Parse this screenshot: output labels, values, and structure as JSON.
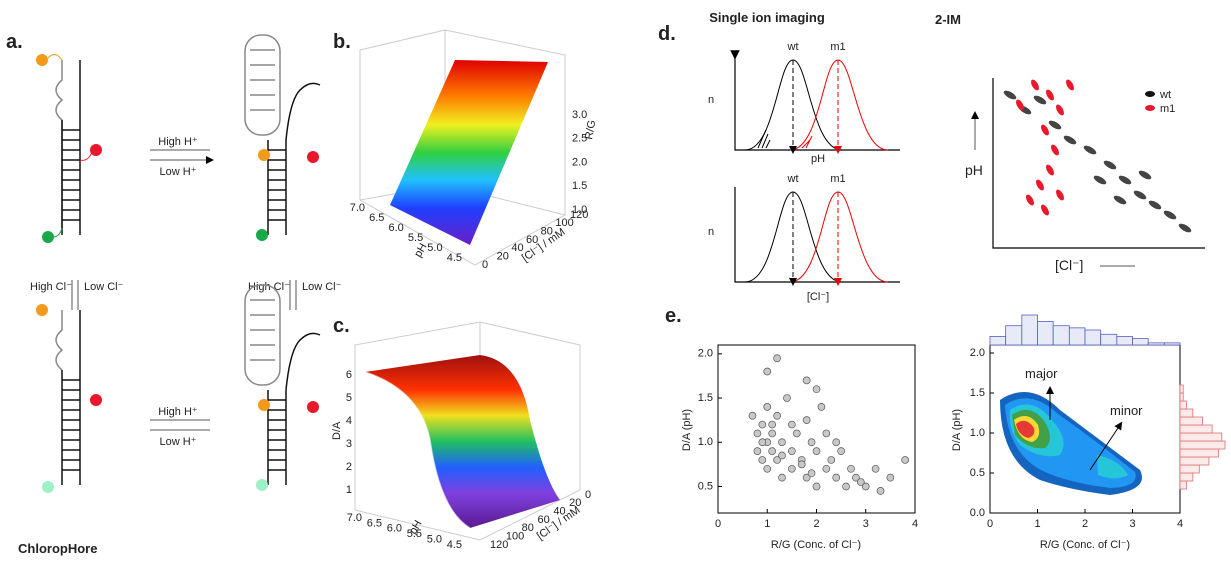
{
  "panels": {
    "a": {
      "label": "a.",
      "high_h": "High H⁺",
      "low_h": "Low H⁺",
      "high_h_2": "High H⁺",
      "low_h_2": "Low H⁺",
      "high_cl": "High Cl⁻",
      "low_cl": "Low Cl⁻",
      "high_cl_2": "High Cl⁻",
      "low_cl_2": "Low Cl⁻",
      "caption": "ChloropHore"
    },
    "b": {
      "label": "b.",
      "ph_label": "pH",
      "cl_label": "[Cl⁻] / mM",
      "z_label": "R/G",
      "ph_ticks": [
        "7.0",
        "6.5",
        "6.0",
        "5.5",
        "5.0",
        "4.5"
      ],
      "cl_ticks": [
        "0",
        "20",
        "40",
        "60",
        "80",
        "100",
        "120"
      ],
      "z_ticks": [
        "1.0",
        "1.5",
        "2.0",
        "2.5",
        "3.0"
      ]
    },
    "c": {
      "label": "c.",
      "ph_label": "pH",
      "cl_label": "[Cl⁻] / mM",
      "z_label": "D/A",
      "ph_ticks": [
        "7.0",
        "6.5",
        "6.0",
        "5.5",
        "5.0",
        "4.5"
      ],
      "cl_ticks": [
        "120",
        "100",
        "80",
        "60",
        "40",
        "20",
        "0"
      ],
      "z_ticks": [
        "1",
        "2",
        "3",
        "4",
        "5",
        "6"
      ]
    },
    "d": {
      "label": "d.",
      "title_left": "Single ion imaging",
      "title_right": "2-IM",
      "top": {
        "y_label": "n",
        "x_label": "pH",
        "wt": "wt",
        "m1": "m1"
      },
      "bottom": {
        "y_label": "n",
        "x_label": "[Cl⁻]",
        "wt": "wt",
        "m1": "m1"
      },
      "im": {
        "legend_wt": "wt",
        "legend_m1": "m1",
        "y_label": "pH",
        "x_label": "[Cl⁻]"
      }
    },
    "e": {
      "label": "e.",
      "scatter": {
        "x_label": "R/G (Conc. of Cl⁻)",
        "y_label": "D/A (pH)",
        "xlim": [
          0,
          4
        ],
        "ylim": [
          0.2,
          2.1
        ],
        "xticks": [
          0,
          1,
          2,
          3,
          4
        ],
        "yticks": [
          {
            "value": 0.5,
            "label": "0.5"
          },
          {
            "value": 1,
            "label": "1.0"
          },
          {
            "value": 1.5,
            "label": "1.5"
          },
          {
            "value": 2,
            "label": "2.0"
          }
        ],
        "x": [
          0.7,
          0.8,
          0.8,
          0.9,
          0.9,
          1.0,
          1.0,
          1.0,
          1.1,
          1.1,
          1.2,
          1.2,
          1.3,
          1.3,
          1.4,
          1.5,
          1.5,
          1.6,
          1.7,
          1.8,
          1.8,
          1.9,
          2.0,
          2.0,
          2.1,
          2.2,
          2.3,
          2.4,
          2.5,
          2.6,
          2.7,
          2.8,
          3.0,
          3.2,
          3.5,
          3.8,
          1.0,
          1.2,
          1.5,
          1.8,
          2.0,
          2.2,
          0.9,
          1.1,
          1.3,
          1.7,
          1.9,
          2.4,
          2.9,
          3.3
        ],
        "y": [
          1.3,
          1.1,
          0.9,
          1.2,
          0.8,
          1.0,
          1.4,
          0.7,
          1.1,
          0.9,
          1.3,
          0.8,
          1.0,
          0.6,
          1.5,
          0.9,
          0.7,
          1.1,
          0.8,
          1.7,
          0.6,
          1.0,
          0.9,
          0.5,
          1.4,
          0.7,
          0.8,
          0.6,
          0.9,
          0.5,
          0.7,
          0.6,
          0.5,
          0.7,
          0.6,
          0.8,
          1.8,
          1.95,
          1.2,
          1.25,
          1.6,
          1.1,
          1.0,
          1.2,
          0.85,
          0.75,
          0.65,
          1.0,
          0.55,
          0.45
        ]
      },
      "density": {
        "x_label": "R/G (Conc. of Cl⁻)",
        "y_label": "D/A (pH)",
        "xlim": [
          0,
          4
        ],
        "ylim": [
          0,
          2.1
        ],
        "xticks": [
          0,
          1,
          2,
          3,
          4
        ],
        "yticks": [
          {
            "value": 0,
            "label": "0.0"
          },
          {
            "value": 0.5,
            "label": "0.5"
          },
          {
            "value": 1,
            "label": "1.0"
          },
          {
            "value": 1.5,
            "label": "1.5"
          },
          {
            "value": 2,
            "label": "2.0"
          }
        ],
        "major": "major",
        "minor": "minor",
        "top_hist": {
          "bins": [
            0,
            0.33,
            0.67,
            1,
            1.33,
            1.67,
            2,
            2.33,
            2.67,
            3,
            3.33,
            3.67,
            4
          ],
          "counts": [
            4,
            9,
            14,
            11,
            9,
            8,
            7,
            5,
            4,
            3,
            1,
            1
          ]
        },
        "right_hist": {
          "bins": [
            0.2,
            0.3,
            0.4,
            0.5,
            0.6,
            0.7,
            0.8,
            0.9,
            1.0,
            1.1,
            1.2,
            1.3,
            1.4,
            1.5,
            1.6
          ],
          "counts": [
            0,
            2,
            4,
            6,
            9,
            12,
            14,
            13,
            10,
            7,
            4,
            2,
            1,
            1
          ]
        }
      }
    }
  }
}
